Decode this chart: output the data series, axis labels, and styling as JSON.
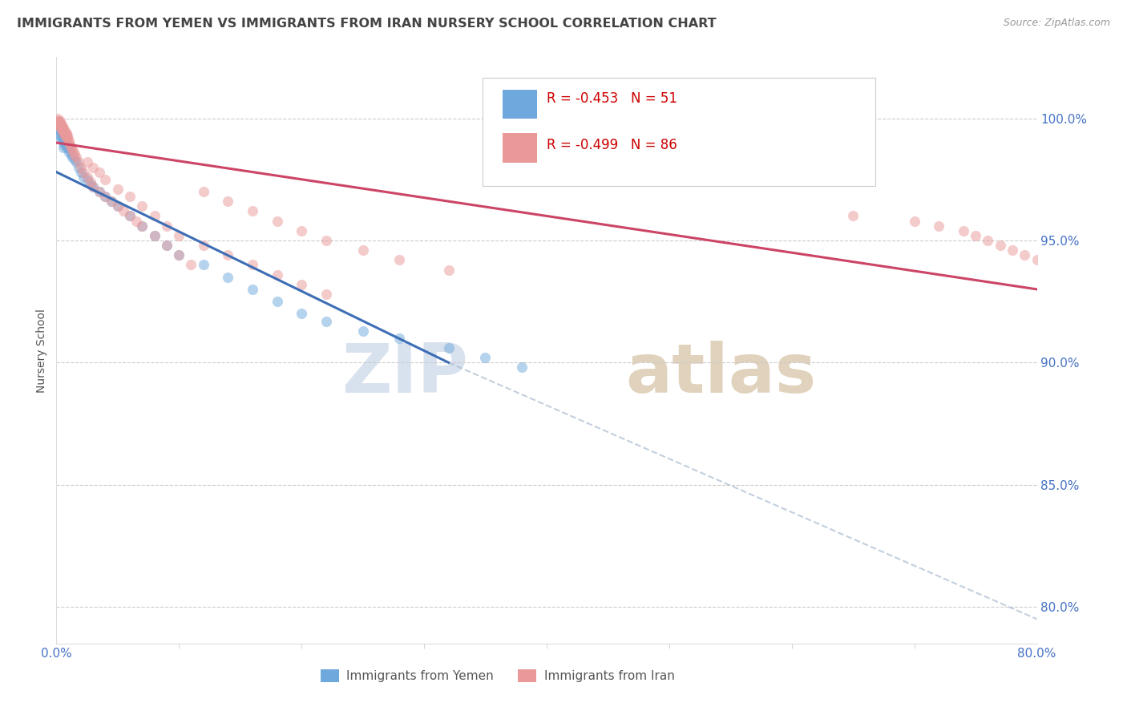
{
  "title": "IMMIGRANTS FROM YEMEN VS IMMIGRANTS FROM IRAN NURSERY SCHOOL CORRELATION CHART",
  "source": "Source: ZipAtlas.com",
  "ylabel": "Nursery School",
  "ytick_labels": [
    "100.0%",
    "95.0%",
    "90.0%",
    "85.0%",
    "80.0%"
  ],
  "ytick_values": [
    1.0,
    0.95,
    0.9,
    0.85,
    0.8
  ],
  "xlim": [
    0.0,
    0.8
  ],
  "ylim": [
    0.785,
    1.025
  ],
  "legend_blue_r": "-0.453",
  "legend_blue_n": "51",
  "legend_pink_r": "-0.499",
  "legend_pink_n": "86",
  "blue_color": "#6fa8dc",
  "pink_color": "#ea9999",
  "blue_line_color": "#3d6eb5",
  "pink_line_color": "#cc4466",
  "watermark_zip_color": "#c8d5e8",
  "watermark_atlas_color": "#d4c8b8",
  "grid_color": "#cccccc",
  "axis_label_color": "#4472c4",
  "title_color": "#444444",
  "blue_scatter_x": [
    0.001,
    0.002,
    0.002,
    0.003,
    0.003,
    0.003,
    0.004,
    0.004,
    0.005,
    0.005,
    0.006,
    0.006,
    0.006,
    0.007,
    0.007,
    0.008,
    0.008,
    0.009,
    0.01,
    0.01,
    0.011,
    0.012,
    0.013,
    0.015,
    0.016,
    0.018,
    0.02,
    0.022,
    0.025,
    0.028,
    0.03,
    0.035,
    0.04,
    0.045,
    0.05,
    0.06,
    0.07,
    0.08,
    0.09,
    0.1,
    0.12,
    0.14,
    0.16,
    0.18,
    0.2,
    0.22,
    0.25,
    0.28,
    0.32,
    0.35,
    0.38
  ],
  "blue_scatter_y": [
    0.999,
    0.998,
    0.996,
    0.997,
    0.995,
    0.993,
    0.994,
    0.992,
    0.993,
    0.991,
    0.992,
    0.99,
    0.988,
    0.991,
    0.989,
    0.99,
    0.988,
    0.989,
    0.988,
    0.986,
    0.987,
    0.985,
    0.984,
    0.983,
    0.982,
    0.98,
    0.978,
    0.976,
    0.975,
    0.973,
    0.972,
    0.97,
    0.968,
    0.966,
    0.964,
    0.96,
    0.956,
    0.952,
    0.948,
    0.944,
    0.94,
    0.935,
    0.93,
    0.925,
    0.92,
    0.917,
    0.913,
    0.91,
    0.906,
    0.902,
    0.898
  ],
  "pink_scatter_x": [
    0.001,
    0.001,
    0.002,
    0.002,
    0.002,
    0.003,
    0.003,
    0.003,
    0.004,
    0.004,
    0.004,
    0.005,
    0.005,
    0.005,
    0.006,
    0.006,
    0.006,
    0.007,
    0.007,
    0.007,
    0.008,
    0.008,
    0.008,
    0.009,
    0.009,
    0.01,
    0.01,
    0.011,
    0.012,
    0.013,
    0.014,
    0.015,
    0.016,
    0.018,
    0.02,
    0.022,
    0.025,
    0.028,
    0.03,
    0.035,
    0.04,
    0.045,
    0.05,
    0.055,
    0.06,
    0.065,
    0.07,
    0.08,
    0.09,
    0.1,
    0.11,
    0.12,
    0.14,
    0.16,
    0.18,
    0.2,
    0.22,
    0.25,
    0.28,
    0.32,
    0.03,
    0.025,
    0.035,
    0.04,
    0.05,
    0.06,
    0.07,
    0.08,
    0.09,
    0.1,
    0.12,
    0.14,
    0.16,
    0.18,
    0.2,
    0.22,
    0.65,
    0.7,
    0.72,
    0.74,
    0.75,
    0.76,
    0.77,
    0.78,
    0.79,
    0.8
  ],
  "pink_scatter_y": [
    1.0,
    0.999,
    0.999,
    0.998,
    0.997,
    0.999,
    0.998,
    0.997,
    0.998,
    0.997,
    0.996,
    0.997,
    0.996,
    0.995,
    0.996,
    0.995,
    0.994,
    0.995,
    0.994,
    0.993,
    0.994,
    0.993,
    0.992,
    0.993,
    0.992,
    0.991,
    0.99,
    0.989,
    0.988,
    0.987,
    0.986,
    0.985,
    0.984,
    0.982,
    0.98,
    0.978,
    0.976,
    0.974,
    0.972,
    0.97,
    0.968,
    0.966,
    0.964,
    0.962,
    0.96,
    0.958,
    0.956,
    0.952,
    0.948,
    0.944,
    0.94,
    0.97,
    0.966,
    0.962,
    0.958,
    0.954,
    0.95,
    0.946,
    0.942,
    0.938,
    0.98,
    0.982,
    0.978,
    0.975,
    0.971,
    0.968,
    0.964,
    0.96,
    0.956,
    0.952,
    0.948,
    0.944,
    0.94,
    0.936,
    0.932,
    0.928,
    0.96,
    0.958,
    0.956,
    0.954,
    0.952,
    0.95,
    0.948,
    0.946,
    0.944,
    0.942
  ],
  "blue_line_x": [
    0.0,
    0.32
  ],
  "blue_line_y": [
    0.978,
    0.9
  ],
  "pink_line_x": [
    0.0,
    0.8
  ],
  "pink_line_y": [
    0.99,
    0.93
  ],
  "dashed_line_x": [
    0.32,
    0.8
  ],
  "dashed_line_y": [
    0.9,
    0.795
  ]
}
